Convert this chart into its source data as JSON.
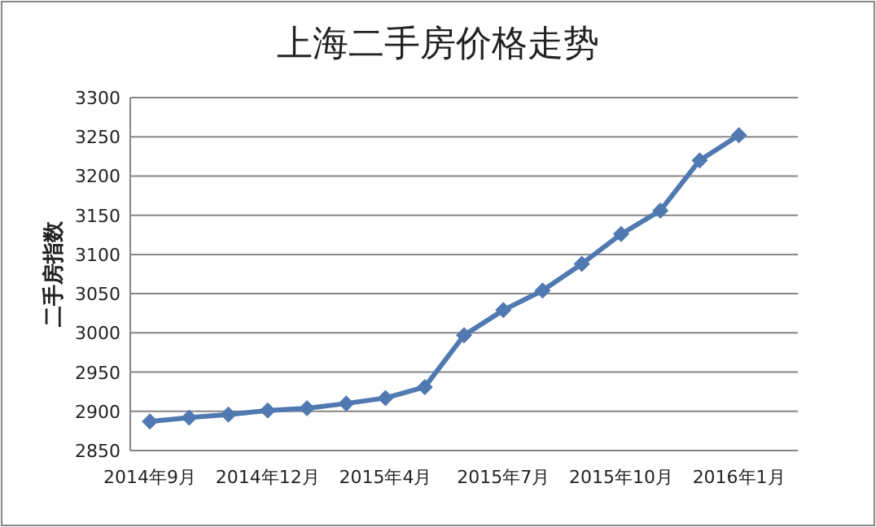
{
  "chart_data": {
    "type": "line",
    "title": "上海二手房价格走势",
    "ylabel": "二手房指数",
    "categories": [
      "2014年9月",
      null,
      null,
      "2014年12月",
      null,
      null,
      "2015年4月",
      null,
      null,
      "2015年7月",
      null,
      null,
      "2015年10月",
      null,
      null,
      "2016年1月",
      null
    ],
    "series": [
      {
        "color": "#4f79b0",
        "values": [
          2887,
          2892,
          2896,
          2901,
          2904,
          2910,
          2917,
          2931,
          2997,
          3029,
          3054,
          3088,
          3126,
          3156,
          3220,
          3252,
          null
        ]
      }
    ],
    "ylim": [
      2850,
      3300
    ],
    "yticks": [
      2850,
      2900,
      2950,
      3000,
      3050,
      3100,
      3150,
      3200,
      3250,
      3300
    ],
    "grid": "y",
    "marker": "diamond",
    "line_style": "solid"
  }
}
